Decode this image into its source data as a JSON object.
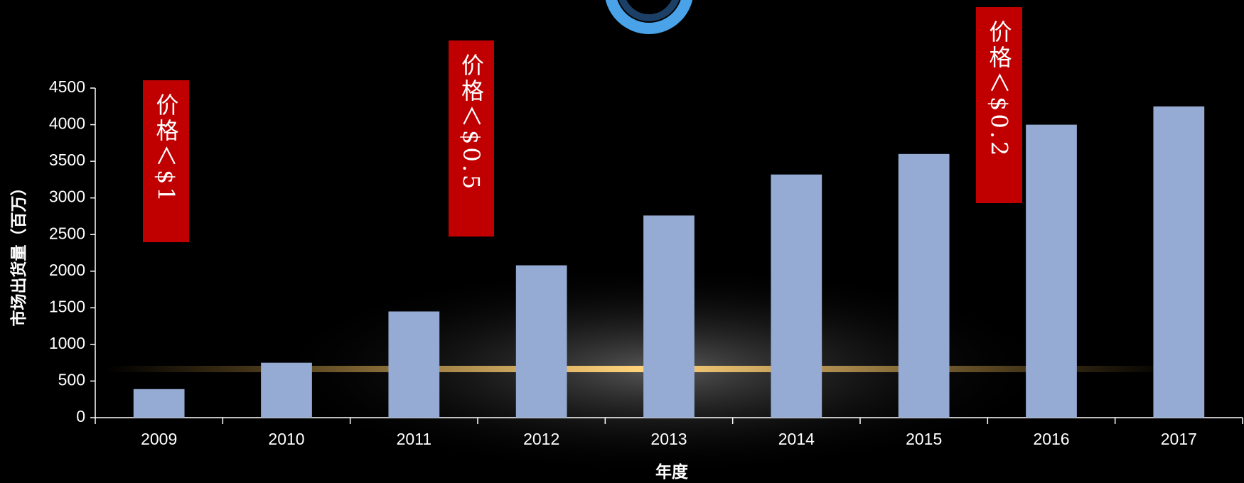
{
  "chart_data": {
    "type": "bar",
    "x_label": "年度",
    "y_label": "市场出货量（百万）",
    "categories": [
      "2009",
      "2010",
      "2011",
      "2012",
      "2013",
      "2014",
      "2015",
      "2016",
      "2017"
    ],
    "values": [
      390,
      750,
      1450,
      2080,
      2760,
      3320,
      3600,
      4000,
      4250
    ],
    "color": "#95abd4",
    "ylim": [
      0,
      4500
    ],
    "yticks": [
      0,
      500,
      1000,
      1500,
      2000,
      2500,
      3000,
      3500,
      4000,
      4500
    ],
    "annotations": [
      "价格＜$1",
      "价格＜$0.5",
      "价格＜$0.2"
    ]
  }
}
